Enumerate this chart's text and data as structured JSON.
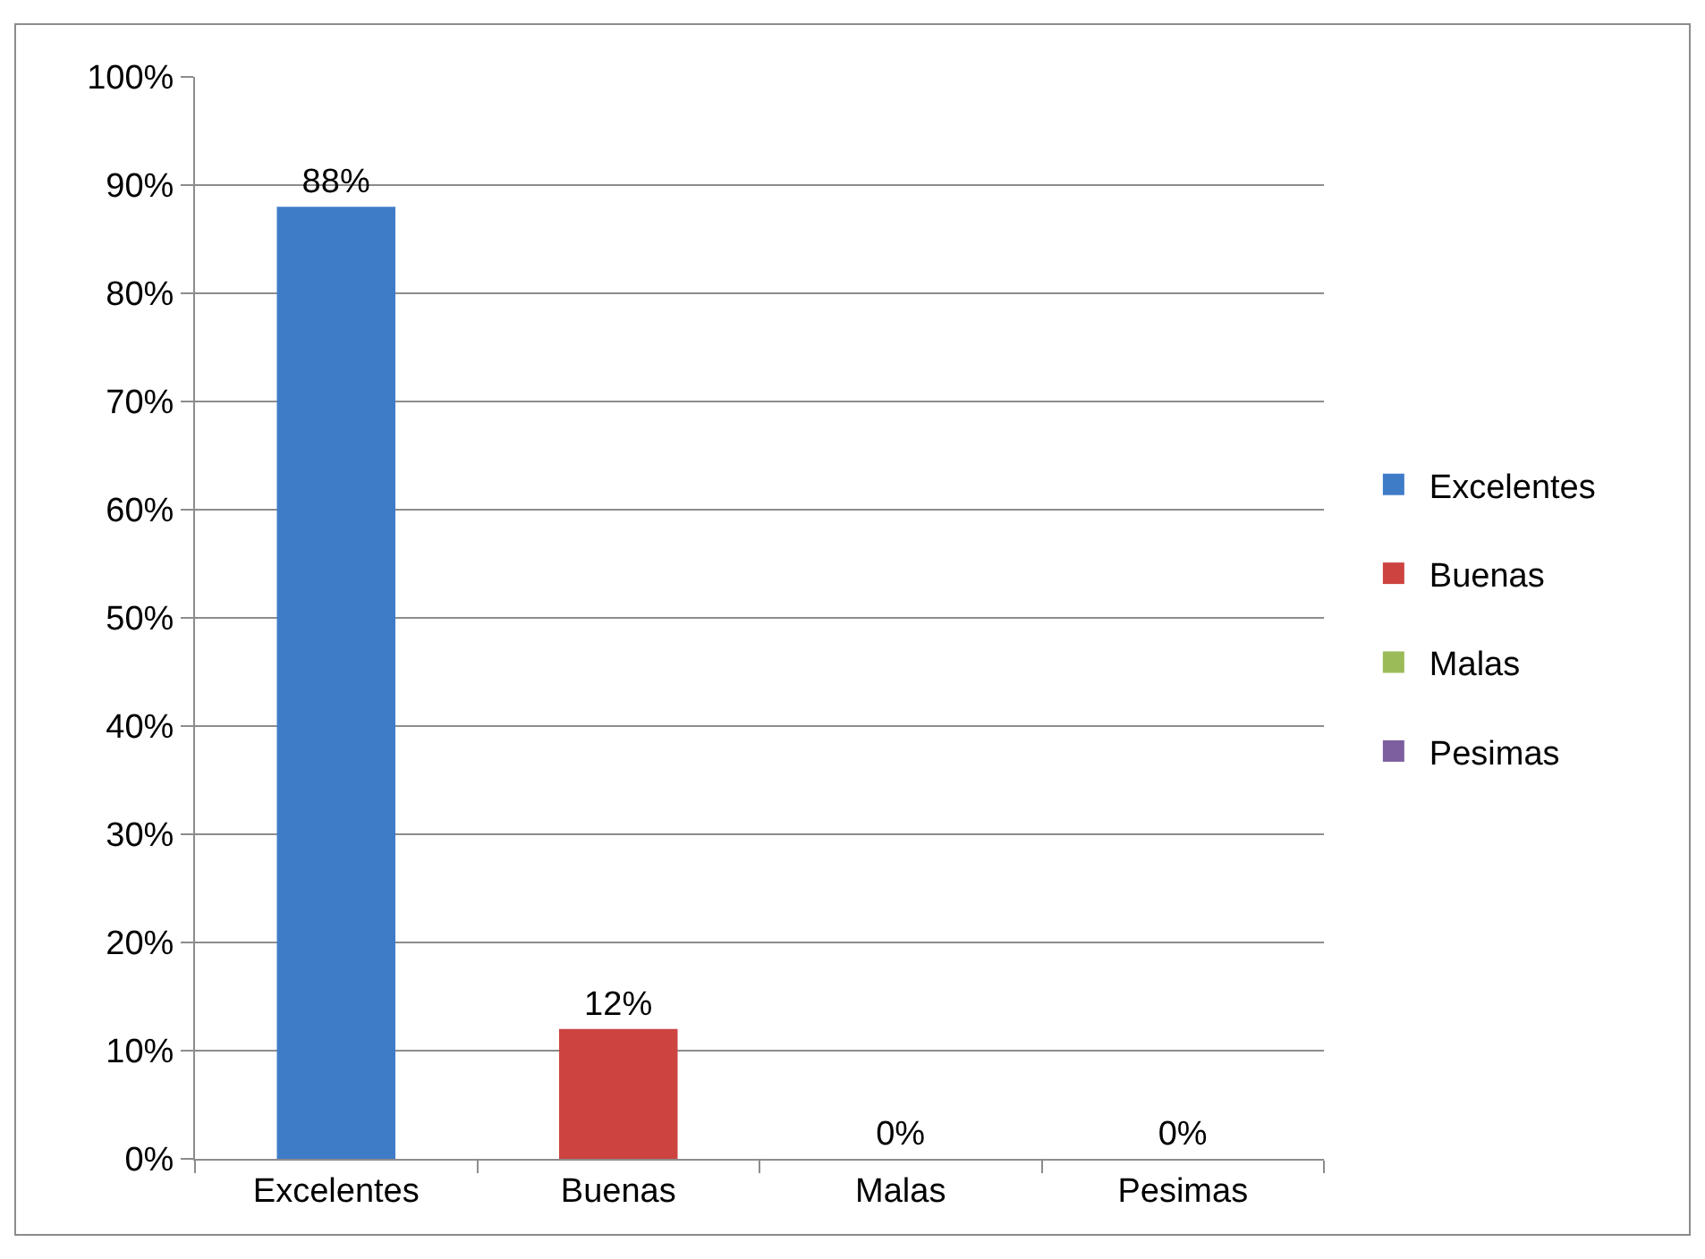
{
  "chart_data": {
    "type": "bar",
    "categories": [
      "Excelentes",
      "Buenas",
      "Malas",
      "Pesimas"
    ],
    "series": [
      {
        "name": "Excelentes",
        "color": "#3f7cc8",
        "values": [
          88,
          null,
          null,
          null
        ],
        "value_labels": [
          "88%",
          null,
          null,
          null
        ]
      },
      {
        "name": "Buenas",
        "color": "#cc4340",
        "values": [
          null,
          12,
          null,
          null
        ],
        "value_labels": [
          null,
          "12%",
          null,
          null
        ]
      },
      {
        "name": "Malas",
        "color": "#9bbb59",
        "values": [
          null,
          null,
          0,
          null
        ],
        "value_labels": [
          null,
          null,
          "0%",
          null
        ]
      },
      {
        "name": "Pesimas",
        "color": "#7d5fa0",
        "values": [
          null,
          null,
          null,
          0
        ],
        "value_labels": [
          null,
          null,
          null,
          "0%"
        ]
      }
    ],
    "ylim": [
      0,
      100
    ],
    "yticks": [
      {
        "value": 0,
        "label": "0%"
      },
      {
        "value": 10,
        "label": "10%"
      },
      {
        "value": 20,
        "label": "20%"
      },
      {
        "value": 30,
        "label": "30%"
      },
      {
        "value": 40,
        "label": "40%"
      },
      {
        "value": 50,
        "label": "50%"
      },
      {
        "value": 60,
        "label": "60%"
      },
      {
        "value": 70,
        "label": "70%"
      },
      {
        "value": 80,
        "label": "80%"
      },
      {
        "value": 90,
        "label": "90%"
      },
      {
        "value": 100,
        "label": "100%"
      }
    ],
    "grid": "y",
    "legend": "right"
  }
}
